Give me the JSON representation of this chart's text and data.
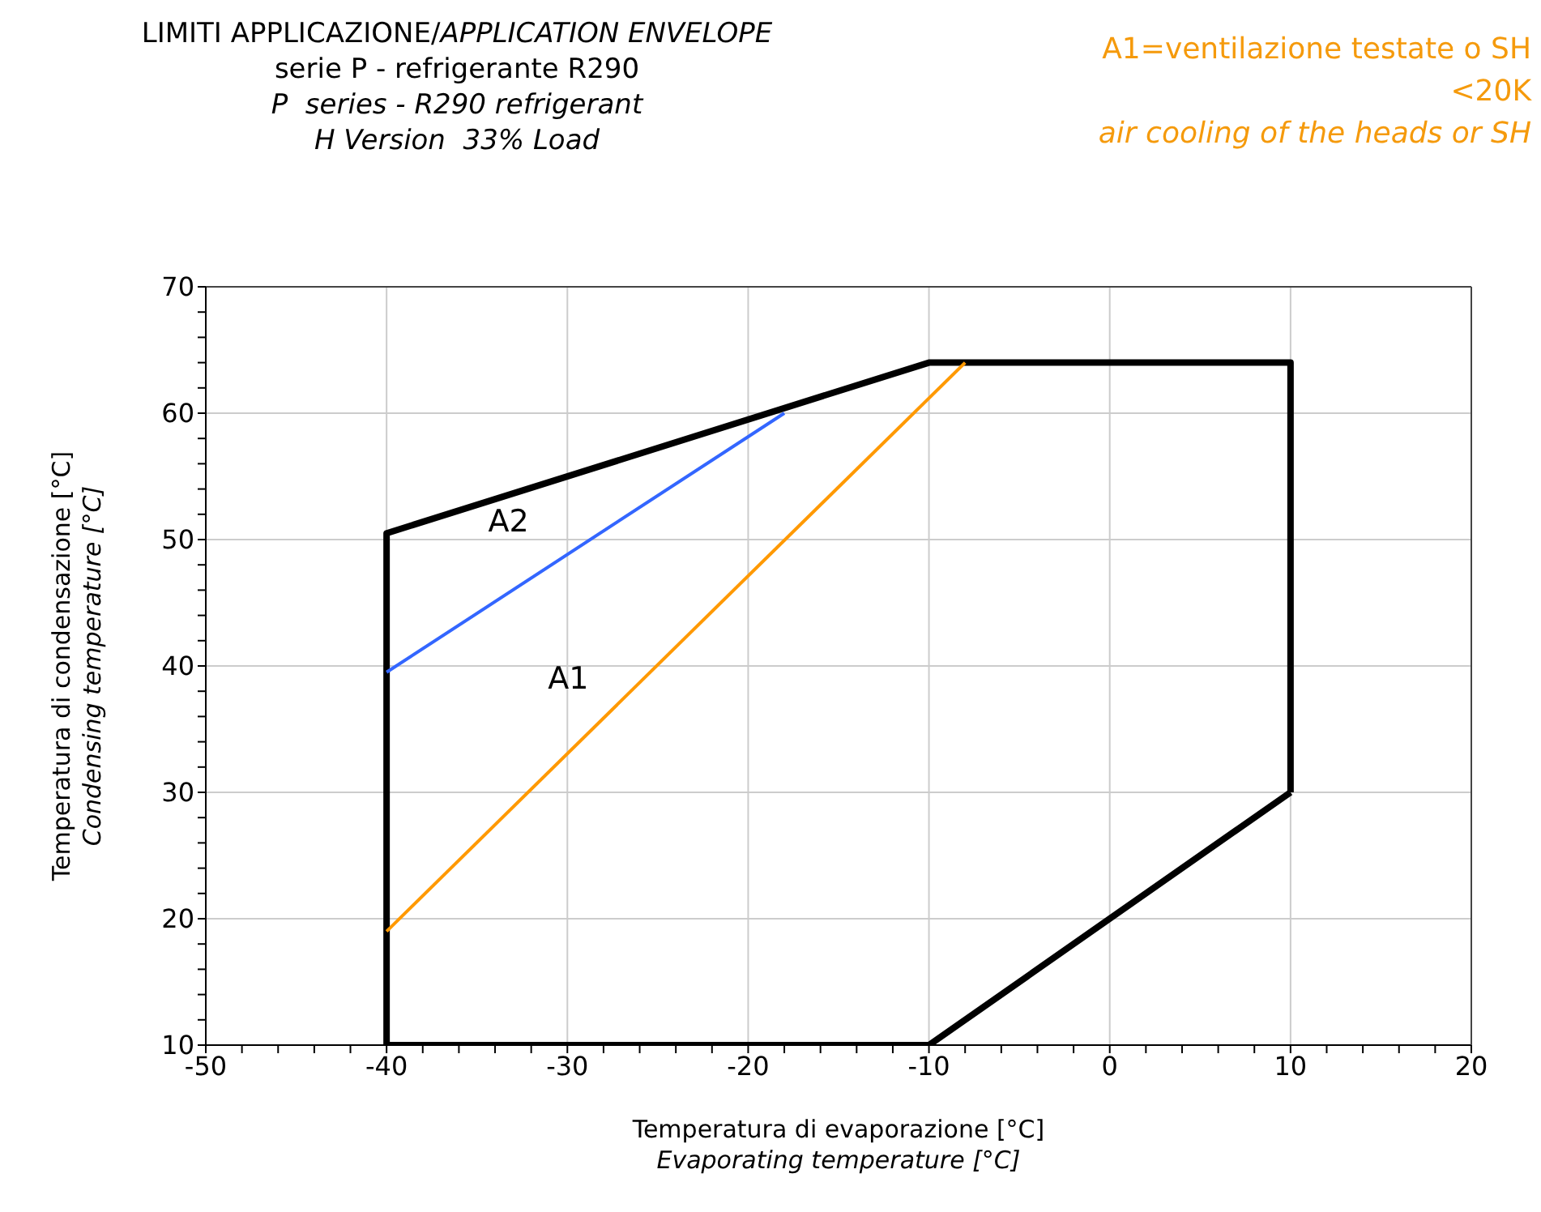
{
  "chart_data": {
    "type": "line",
    "title": "LIMITI APPLICAZIONE/APPLICATION ENVELOPE",
    "subtitle": "serie P - refrigerante R290\nP  series - R290 refrigerant\nH Version  33% Load",
    "xlabel": "Temperatura di evaporazione [°C]\nEvaporating temperature [°C]",
    "ylabel": "Temperatura di condensazione [°C]\nCondensing temperature [°C]",
    "series": [
      {
        "color": "#000000",
        "x": [
          -40,
          -40,
          -10,
          10,
          10
        ],
        "values": [
          10,
          50.5,
          64,
          64,
          30
        ]
      },
      {
        "color": "#000000",
        "x": [
          10,
          -10,
          -40
        ],
        "values": [
          30,
          10,
          10
        ]
      },
      {
        "name": "A2",
        "color": "#3366ff",
        "x": [
          -40,
          -18
        ],
        "values": [
          39.5,
          60
        ]
      },
      {
        "name": "A1",
        "color": "#ff9900",
        "x": [
          -40,
          -8
        ],
        "values": [
          19,
          64
        ]
      }
    ],
    "xlim": [
      -50,
      20
    ],
    "xticks": [
      -50,
      {
        "value": -48,
        "label": null
      },
      {
        "value": -46,
        "label": null
      },
      {
        "value": -44,
        "label": null
      },
      {
        "value": -42,
        "label": null
      },
      -40,
      {
        "value": -38,
        "label": null
      },
      {
        "value": -36,
        "label": null
      },
      {
        "value": -34,
        "label": null
      },
      {
        "value": -32,
        "label": null
      },
      -30,
      {
        "value": -28,
        "label": null
      },
      {
        "value": -26,
        "label": null
      },
      {
        "value": -24,
        "label": null
      },
      {
        "value": -22,
        "label": null
      },
      -20,
      {
        "value": -18,
        "label": null
      },
      {
        "value": -16,
        "label": null
      },
      {
        "value": -14,
        "label": null
      },
      {
        "value": -12,
        "label": null
      },
      -10,
      {
        "value": -8,
        "label": null
      },
      {
        "value": -6,
        "label": null
      },
      {
        "value": -4,
        "label": null
      },
      {
        "value": -2,
        "label": null
      },
      0,
      {
        "value": 2,
        "label": null
      },
      {
        "value": 4,
        "label": null
      },
      {
        "value": 6,
        "label": null
      },
      {
        "value": 8,
        "label": null
      },
      10,
      {
        "value": 12,
        "label": null
      },
      {
        "value": 14,
        "label": null
      },
      {
        "value": 16,
        "label": null
      },
      {
        "value": 18,
        "label": null
      },
      20
    ],
    "ylim": [
      10,
      70
    ],
    "yticks": [
      10,
      {
        "value": 12,
        "label": null
      },
      {
        "value": 14,
        "label": null
      },
      {
        "value": 16,
        "label": null
      },
      {
        "value": 18,
        "label": null
      },
      20,
      {
        "value": 22,
        "label": null
      },
      {
        "value": 24,
        "label": null
      },
      {
        "value": 26,
        "label": null
      },
      {
        "value": 28,
        "label": null
      },
      30,
      {
        "value": 32,
        "label": null
      },
      {
        "value": 34,
        "label": null
      },
      {
        "value": 36,
        "label": null
      },
      {
        "value": 38,
        "label": null
      },
      40,
      {
        "value": 42,
        "label": null
      },
      {
        "value": 44,
        "label": null
      },
      {
        "value": 46,
        "label": null
      },
      {
        "value": 48,
        "label": null
      },
      50,
      {
        "value": 52,
        "label": null
      },
      {
        "value": 54,
        "label": null
      },
      {
        "value": 56,
        "label": null
      },
      {
        "value": 58,
        "label": null
      },
      60,
      {
        "value": 62,
        "label": null
      },
      {
        "value": 64,
        "label": null
      },
      {
        "value": 66,
        "label": null
      },
      {
        "value": 68,
        "label": null
      },
      70
    ],
    "grid": true,
    "legend": false,
    "marker": "none",
    "line_style": "solid",
    "annotations": [
      "A1=ventilazione testate o SH",
      "<20K",
      "air cooling of the heads or SH"
    ]
  }
}
